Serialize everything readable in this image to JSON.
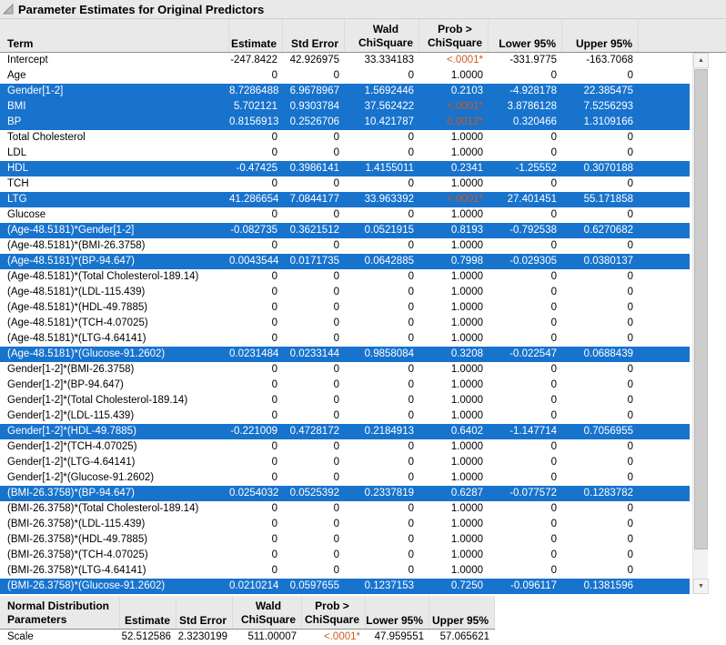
{
  "title": "Parameter Estimates for Original Predictors",
  "colors": {
    "selection_blue": "#1873cd",
    "significant": "#d05a1e"
  },
  "scrollbar": {
    "up_arrow": "▲",
    "down_arrow": "▼"
  },
  "main_table": {
    "header": {
      "term": "Term",
      "estimate": "Estimate",
      "std_error": "Std Error",
      "wald_line1": "Wald",
      "wald_line2": "ChiSquare",
      "prob_line1": "Prob >",
      "prob_line2": "ChiSquare",
      "lower95": "Lower 95%",
      "upper95": "Upper 95%"
    },
    "rows": [
      {
        "term": "Intercept",
        "estimate": "-247.8422",
        "std_error": "42.926975",
        "chisquare": "33.334183",
        "prob": "<.0001*",
        "lower95": "-331.9775",
        "upper95": "-163.7068",
        "selected": false
      },
      {
        "term": "Age",
        "estimate": "0",
        "std_error": "0",
        "chisquare": "0",
        "prob": "1.0000",
        "lower95": "0",
        "upper95": "0",
        "selected": false
      },
      {
        "term": "Gender[1-2]",
        "estimate": "8.7286488",
        "std_error": "6.9678967",
        "chisquare": "1.5692446",
        "prob": "0.2103",
        "lower95": "-4.928178",
        "upper95": "22.385475",
        "selected": true
      },
      {
        "term": "BMI",
        "estimate": "5.702121",
        "std_error": "0.9303784",
        "chisquare": "37.562422",
        "prob": "<.0001*",
        "lower95": "3.8786128",
        "upper95": "7.5256293",
        "selected": true
      },
      {
        "term": "BP",
        "estimate": "0.8156913",
        "std_error": "0.2526706",
        "chisquare": "10.421787",
        "prob": "0.0012*",
        "lower95": "0.320466",
        "upper95": "1.3109166",
        "selected": true
      },
      {
        "term": "Total Cholesterol",
        "estimate": "0",
        "std_error": "0",
        "chisquare": "0",
        "prob": "1.0000",
        "lower95": "0",
        "upper95": "0",
        "selected": false
      },
      {
        "term": "LDL",
        "estimate": "0",
        "std_error": "0",
        "chisquare": "0",
        "prob": "1.0000",
        "lower95": "0",
        "upper95": "0",
        "selected": false
      },
      {
        "term": "HDL",
        "estimate": "-0.47425",
        "std_error": "0.3986141",
        "chisquare": "1.4155011",
        "prob": "0.2341",
        "lower95": "-1.25552",
        "upper95": "0.3070188",
        "selected": true
      },
      {
        "term": "TCH",
        "estimate": "0",
        "std_error": "0",
        "chisquare": "0",
        "prob": "1.0000",
        "lower95": "0",
        "upper95": "0",
        "selected": false
      },
      {
        "term": "LTG",
        "estimate": "41.286654",
        "std_error": "7.0844177",
        "chisquare": "33.963392",
        "prob": "<.0001*",
        "lower95": "27.401451",
        "upper95": "55.171858",
        "selected": true
      },
      {
        "term": "Glucose",
        "estimate": "0",
        "std_error": "0",
        "chisquare": "0",
        "prob": "1.0000",
        "lower95": "0",
        "upper95": "0",
        "selected": false
      },
      {
        "term": "(Age-48.5181)*Gender[1-2]",
        "estimate": "-0.082735",
        "std_error": "0.3621512",
        "chisquare": "0.0521915",
        "prob": "0.8193",
        "lower95": "-0.792538",
        "upper95": "0.6270682",
        "selected": true
      },
      {
        "term": "(Age-48.5181)*(BMI-26.3758)",
        "estimate": "0",
        "std_error": "0",
        "chisquare": "0",
        "prob": "1.0000",
        "lower95": "0",
        "upper95": "0",
        "selected": false
      },
      {
        "term": "(Age-48.5181)*(BP-94.647)",
        "estimate": "0.0043544",
        "std_error": "0.0171735",
        "chisquare": "0.0642885",
        "prob": "0.7998",
        "lower95": "-0.029305",
        "upper95": "0.0380137",
        "selected": true
      },
      {
        "term": "(Age-48.5181)*(Total Cholesterol-189.14)",
        "estimate": "0",
        "std_error": "0",
        "chisquare": "0",
        "prob": "1.0000",
        "lower95": "0",
        "upper95": "0",
        "selected": false
      },
      {
        "term": "(Age-48.5181)*(LDL-115.439)",
        "estimate": "0",
        "std_error": "0",
        "chisquare": "0",
        "prob": "1.0000",
        "lower95": "0",
        "upper95": "0",
        "selected": false
      },
      {
        "term": "(Age-48.5181)*(HDL-49.7885)",
        "estimate": "0",
        "std_error": "0",
        "chisquare": "0",
        "prob": "1.0000",
        "lower95": "0",
        "upper95": "0",
        "selected": false
      },
      {
        "term": "(Age-48.5181)*(TCH-4.07025)",
        "estimate": "0",
        "std_error": "0",
        "chisquare": "0",
        "prob": "1.0000",
        "lower95": "0",
        "upper95": "0",
        "selected": false
      },
      {
        "term": "(Age-48.5181)*(LTG-4.64141)",
        "estimate": "0",
        "std_error": "0",
        "chisquare": "0",
        "prob": "1.0000",
        "lower95": "0",
        "upper95": "0",
        "selected": false
      },
      {
        "term": "(Age-48.5181)*(Glucose-91.2602)",
        "estimate": "0.0231484",
        "std_error": "0.0233144",
        "chisquare": "0.9858084",
        "prob": "0.3208",
        "lower95": "-0.022547",
        "upper95": "0.0688439",
        "selected": true
      },
      {
        "term": "Gender[1-2]*(BMI-26.3758)",
        "estimate": "0",
        "std_error": "0",
        "chisquare": "0",
        "prob": "1.0000",
        "lower95": "0",
        "upper95": "0",
        "selected": false
      },
      {
        "term": "Gender[1-2]*(BP-94.647)",
        "estimate": "0",
        "std_error": "0",
        "chisquare": "0",
        "prob": "1.0000",
        "lower95": "0",
        "upper95": "0",
        "selected": false
      },
      {
        "term": "Gender[1-2]*(Total Cholesterol-189.14)",
        "estimate": "0",
        "std_error": "0",
        "chisquare": "0",
        "prob": "1.0000",
        "lower95": "0",
        "upper95": "0",
        "selected": false
      },
      {
        "term": "Gender[1-2]*(LDL-115.439)",
        "estimate": "0",
        "std_error": "0",
        "chisquare": "0",
        "prob": "1.0000",
        "lower95": "0",
        "upper95": "0",
        "selected": false
      },
      {
        "term": "Gender[1-2]*(HDL-49.7885)",
        "estimate": "-0.221009",
        "std_error": "0.4728172",
        "chisquare": "0.2184913",
        "prob": "0.6402",
        "lower95": "-1.147714",
        "upper95": "0.7056955",
        "selected": true
      },
      {
        "term": "Gender[1-2]*(TCH-4.07025)",
        "estimate": "0",
        "std_error": "0",
        "chisquare": "0",
        "prob": "1.0000",
        "lower95": "0",
        "upper95": "0",
        "selected": false
      },
      {
        "term": "Gender[1-2]*(LTG-4.64141)",
        "estimate": "0",
        "std_error": "0",
        "chisquare": "0",
        "prob": "1.0000",
        "lower95": "0",
        "upper95": "0",
        "selected": false
      },
      {
        "term": "Gender[1-2]*(Glucose-91.2602)",
        "estimate": "0",
        "std_error": "0",
        "chisquare": "0",
        "prob": "1.0000",
        "lower95": "0",
        "upper95": "0",
        "selected": false
      },
      {
        "term": "(BMI-26.3758)*(BP-94.647)",
        "estimate": "0.0254032",
        "std_error": "0.0525392",
        "chisquare": "0.2337819",
        "prob": "0.6287",
        "lower95": "-0.077572",
        "upper95": "0.1283782",
        "selected": true
      },
      {
        "term": "(BMI-26.3758)*(Total Cholesterol-189.14)",
        "estimate": "0",
        "std_error": "0",
        "chisquare": "0",
        "prob": "1.0000",
        "lower95": "0",
        "upper95": "0",
        "selected": false
      },
      {
        "term": "(BMI-26.3758)*(LDL-115.439)",
        "estimate": "0",
        "std_error": "0",
        "chisquare": "0",
        "prob": "1.0000",
        "lower95": "0",
        "upper95": "0",
        "selected": false
      },
      {
        "term": "(BMI-26.3758)*(HDL-49.7885)",
        "estimate": "0",
        "std_error": "0",
        "chisquare": "0",
        "prob": "1.0000",
        "lower95": "0",
        "upper95": "0",
        "selected": false
      },
      {
        "term": "(BMI-26.3758)*(TCH-4.07025)",
        "estimate": "0",
        "std_error": "0",
        "chisquare": "0",
        "prob": "1.0000",
        "lower95": "0",
        "upper95": "0",
        "selected": false
      },
      {
        "term": "(BMI-26.3758)*(LTG-4.64141)",
        "estimate": "0",
        "std_error": "0",
        "chisquare": "0",
        "prob": "1.0000",
        "lower95": "0",
        "upper95": "0",
        "selected": false
      },
      {
        "term": "(BMI-26.3758)*(Glucose-91.2602)",
        "estimate": "0.0210214",
        "std_error": "0.0597655",
        "chisquare": "0.1237153",
        "prob": "0.7250",
        "lower95": "-0.096117",
        "upper95": "0.1381596",
        "selected": true
      }
    ]
  },
  "scale_table": {
    "header": {
      "label_line1": "Normal Distribution",
      "label_line2": "Parameters",
      "estimate": "Estimate",
      "std_error": "Std Error",
      "wald_line1": "Wald",
      "wald_line2": "ChiSquare",
      "prob_line1": "Prob >",
      "prob_line2": "ChiSquare",
      "lower95": "Lower 95%",
      "upper95": "Upper 95%"
    },
    "rows": [
      {
        "term": "Scale",
        "estimate": "52.512586",
        "std_error": "2.3230199",
        "chisquare": "511.00007",
        "prob": "<.0001*",
        "lower95": "47.959551",
        "upper95": "57.065621",
        "selected": false
      }
    ]
  }
}
